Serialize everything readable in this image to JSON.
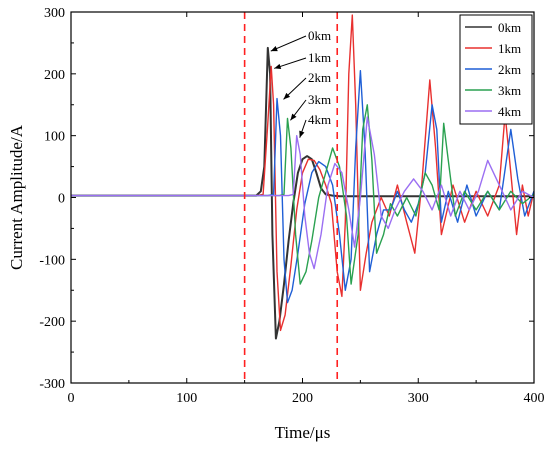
{
  "chart_data": {
    "type": "line",
    "xlabel": "Time/μs",
    "ylabel": "Current Amplitude/A",
    "xlim": [
      0,
      400
    ],
    "ylim": [
      -300,
      300
    ],
    "xticks": [
      0,
      100,
      200,
      300,
      400
    ],
    "yticks": [
      -300,
      -200,
      -100,
      0,
      100,
      200,
      300
    ],
    "grid": false,
    "legend_position": "top-right",
    "vertical_markers": [
      {
        "x": 150,
        "color": "#ff2020",
        "style": "dashed"
      },
      {
        "x": 230,
        "color": "#ff2020",
        "style": "dashed"
      }
    ],
    "annotations": [
      {
        "text": "0km",
        "x": 170,
        "y": 240
      },
      {
        "text": "1km",
        "x": 173,
        "y": 212
      },
      {
        "text": "2km",
        "x": 181,
        "y": 162
      },
      {
        "text": "3km",
        "x": 187,
        "y": 128
      },
      {
        "text": "4km",
        "x": 195,
        "y": 100
      }
    ],
    "series": [
      {
        "name": "0km",
        "color": "#333333",
        "x": [
          0,
          100,
          160,
          164,
          167,
          170,
          172,
          174,
          177,
          180,
          184,
          188,
          192,
          196,
          200,
          204,
          208,
          212,
          216,
          220,
          226,
          232,
          240,
          260,
          300,
          350,
          400
        ],
        "y": [
          3,
          3,
          3,
          10,
          50,
          242,
          200,
          -60,
          -228,
          -200,
          -140,
          -70,
          -10,
          40,
          62,
          67,
          62,
          40,
          15,
          5,
          3,
          2,
          2,
          2,
          2,
          2,
          2
        ]
      },
      {
        "name": "1km",
        "color": "#e8302f",
        "x": [
          0,
          160,
          166,
          170,
          173,
          175,
          178,
          181,
          185,
          190,
          195,
          200,
          205,
          210,
          215,
          220,
          225,
          230,
          234,
          237,
          240,
          243,
          246,
          250,
          255,
          260,
          268,
          275,
          282,
          290,
          297,
          303,
          310,
          315,
          320,
          330,
          340,
          350,
          360,
          370,
          375,
          380,
          385,
          390,
          395,
          400
        ],
        "y": [
          3,
          3,
          5,
          120,
          212,
          150,
          -120,
          -215,
          -190,
          -110,
          -20,
          40,
          62,
          60,
          45,
          20,
          -10,
          -120,
          -160,
          -40,
          200,
          295,
          150,
          -150,
          -90,
          -40,
          0,
          -30,
          20,
          -40,
          -90,
          20,
          190,
          80,
          -60,
          20,
          -40,
          10,
          -30,
          20,
          135,
          40,
          -60,
          20,
          -30,
          10
        ]
      },
      {
        "name": "2km",
        "color": "#1f5fd6",
        "x": [
          0,
          170,
          175,
          178,
          181,
          184,
          187,
          191,
          196,
          202,
          208,
          214,
          220,
          226,
          232,
          237,
          242,
          246,
          250,
          254,
          258,
          264,
          270,
          276,
          282,
          288,
          294,
          300,
          306,
          312,
          316,
          320,
          326,
          334,
          342,
          350,
          360,
          370,
          380,
          386,
          392,
          400
        ],
        "y": [
          3,
          3,
          5,
          160,
          100,
          -100,
          -170,
          -150,
          -90,
          -10,
          40,
          58,
          50,
          20,
          -60,
          -150,
          -100,
          80,
          205,
          80,
          -120,
          -60,
          -20,
          -20,
          10,
          -20,
          -40,
          -10,
          40,
          150,
          110,
          -40,
          10,
          -40,
          20,
          -30,
          10,
          -20,
          110,
          30,
          -30,
          10
        ]
      },
      {
        "name": "3km",
        "color": "#2aa150",
        "x": [
          0,
          180,
          184,
          187,
          190,
          194,
          198,
          203,
          208,
          214,
          220,
          226,
          232,
          238,
          242,
          248,
          252,
          256,
          260,
          264,
          270,
          276,
          282,
          290,
          298,
          306,
          312,
          318,
          322,
          326,
          332,
          340,
          350,
          360,
          370,
          380,
          390,
          400
        ],
        "y": [
          3,
          3,
          5,
          128,
          80,
          -60,
          -140,
          -120,
          -70,
          0,
          40,
          80,
          50,
          -30,
          -140,
          -60,
          110,
          150,
          60,
          -90,
          -60,
          -10,
          -30,
          0,
          -30,
          40,
          20,
          -20,
          120,
          60,
          -30,
          10,
          -20,
          10,
          -20,
          10,
          -10,
          5
        ]
      },
      {
        "name": "4km",
        "color": "#9b6ff2",
        "x": [
          0,
          188,
          192,
          195,
          198,
          202,
          206,
          210,
          216,
          222,
          228,
          234,
          240,
          245,
          250,
          256,
          262,
          268,
          274,
          280,
          288,
          296,
          304,
          312,
          320,
          328,
          336,
          344,
          352,
          360,
          370,
          380,
          390,
          400
        ],
        "y": [
          3,
          3,
          5,
          100,
          70,
          -30,
          -90,
          -115,
          -60,
          20,
          55,
          40,
          -20,
          -80,
          0,
          130,
          70,
          -30,
          -50,
          -20,
          10,
          30,
          10,
          -20,
          20,
          -30,
          10,
          -20,
          10,
          60,
          20,
          -20,
          10,
          0
        ]
      }
    ]
  }
}
